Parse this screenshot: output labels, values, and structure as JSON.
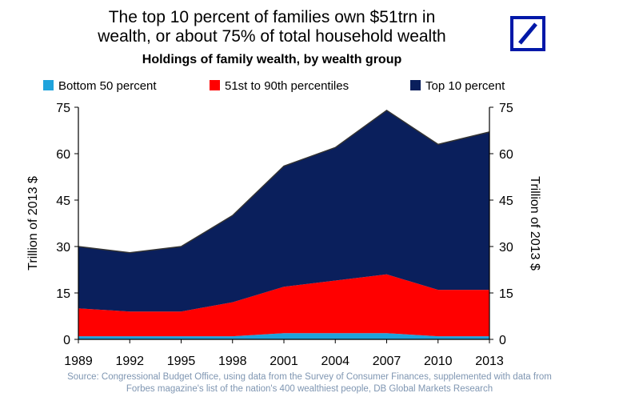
{
  "title_line1": "The top 10 percent of families own $51trn in",
  "title_line2": "wealth, or about 75% of total household wealth",
  "source_line1": "Source: Congressional Budget Office, using data from the Survey of Consumer Finances, supplemented with data from",
  "source_line2": "Forbes magazine's list of the nation's 400 wealthiest people, DB Global Markets Research",
  "logo_icon": "deutsche-bank-slash-square-icon",
  "colors": {
    "bottom50": "#1fa3dc",
    "mid": "#ff0000",
    "top10": "#0a1f5c",
    "logo": "#0018a8",
    "source_text": "#7f96b2"
  },
  "chart_data": {
    "type": "area",
    "stacked": true,
    "title": "Holdings of family wealth, by wealth group",
    "ylabel_left": "Trillion of 2013 $",
    "ylabel_right": "Trillion of 2013 $",
    "x": [
      "1989",
      "1992",
      "1995",
      "1998",
      "2001",
      "2004",
      "2007",
      "2010",
      "2013"
    ],
    "yticks": [
      "0",
      "15",
      "30",
      "45",
      "60",
      "75"
    ],
    "ylim": [
      0,
      75
    ],
    "legend_position": "top",
    "series": [
      {
        "name": "Bottom 50 percent",
        "values": [
          1,
          1,
          1,
          1,
          2,
          2,
          2,
          1,
          1
        ]
      },
      {
        "name": "51st to 90th percentiles",
        "values": [
          9,
          8,
          8,
          11,
          15,
          17,
          19,
          15,
          15
        ]
      },
      {
        "name": "Top 10 percent",
        "values": [
          20,
          19,
          21,
          28,
          39,
          43,
          53,
          47,
          51
        ]
      }
    ]
  }
}
